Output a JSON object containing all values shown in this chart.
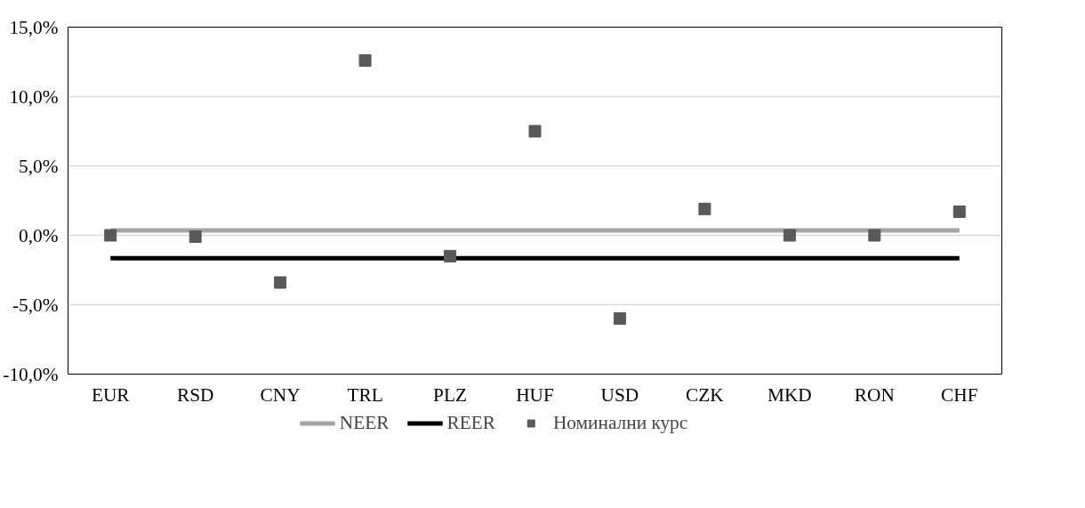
{
  "chart_data": {
    "type": "scatter",
    "categories": [
      "EUR",
      "RSD",
      "CNY",
      "TRL",
      "PLZ",
      "HUF",
      "USD",
      "CZK",
      "MKD",
      "RON",
      "CHF"
    ],
    "series": [
      {
        "name": "NEER",
        "type": "line",
        "color": "#a6a6a6",
        "values": [
          0.35,
          0.35,
          0.35,
          0.35,
          0.35,
          0.35,
          0.35,
          0.35,
          0.35,
          0.35,
          0.35
        ]
      },
      {
        "name": "REER",
        "type": "line",
        "color": "#000000",
        "values": [
          -1.65,
          -1.65,
          -1.65,
          -1.65,
          -1.65,
          -1.65,
          -1.65,
          -1.65,
          -1.65,
          -1.65,
          -1.65
        ]
      },
      {
        "name": "Номинални курс",
        "color": "#595959",
        "marker": "square",
        "values": [
          0.0,
          -0.1,
          -3.4,
          12.6,
          -1.5,
          7.5,
          -6.0,
          1.9,
          0.0,
          0.0,
          1.7
        ]
      }
    ],
    "ylim": [
      -10,
      15
    ],
    "yticks": [
      {
        "value": -10,
        "label": "-10,0%"
      },
      {
        "value": -5,
        "label": "-5,0%"
      },
      {
        "value": 0,
        "label": "0,0%"
      },
      {
        "value": 5,
        "label": "5,0%"
      },
      {
        "value": 10,
        "label": "10,0%"
      },
      {
        "value": 15,
        "label": "15,0%"
      }
    ],
    "grid": "y",
    "legend": "bottom"
  }
}
